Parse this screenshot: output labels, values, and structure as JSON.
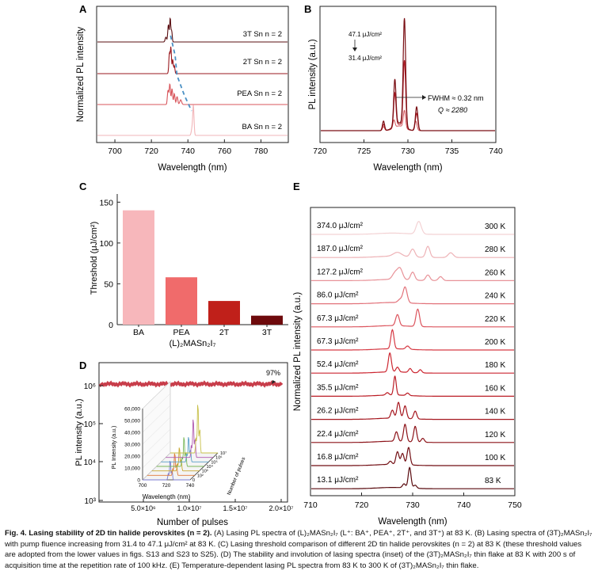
{
  "colors": {
    "axis": "#222222",
    "t3": "#5a0f12",
    "t2": "#9a1a1f",
    "pea": "#d8555b",
    "ba": "#f2b6b9",
    "dashed_blue": "#4a90c4",
    "d_trace": "#c83d4a",
    "bars": [
      "#f7b7bb",
      "#f06b6b",
      "#c0201a",
      "#6e0a0c"
    ]
  },
  "panelA": {
    "letter": "A",
    "ylabel": "Normalized PL intensity",
    "xlabel": "Wavelength (nm)",
    "xticks": [
      "700",
      "720",
      "740",
      "760",
      "780"
    ],
    "traces": [
      "3T Sn n = 2",
      "2T Sn n = 2",
      "PEA Sn n = 2",
      "BA Sn n = 2"
    ]
  },
  "panelB": {
    "letter": "B",
    "ylabel": "PL intensity (a.u.)",
    "xlabel": "Wavelength (nm)",
    "xticks": [
      "720",
      "725",
      "730",
      "735",
      "740"
    ],
    "fluence_top": "47.1 μJ/cm²",
    "fluence_bottom": "31.4 μJ/cm²",
    "fwhm": "FWHM ≈ 0.32 nm",
    "q": "Q ≈ 2280"
  },
  "panelC": {
    "letter": "C",
    "ylabel": "Threshold (μJ/cm²)",
    "xlabel": "(L)₂MASn₂I₇",
    "yticks": [
      "0",
      "50",
      "100",
      "150"
    ]
  },
  "chart_data": [
    {
      "type": "bar",
      "categories": [
        "BA",
        "PEA",
        "2T",
        "3T"
      ],
      "values": [
        140,
        58,
        29,
        11
      ],
      "ylabel": "Threshold (μJ/cm²)",
      "xlabel": "(L)₂MASn₂I₇",
      "ylim": [
        0,
        160
      ]
    }
  ],
  "panelD": {
    "letter": "D",
    "ylabel": "PL intensity (a.u.)",
    "xlabel": "Number of pulses",
    "yticks": [
      "10³",
      "10⁴",
      "10⁵",
      "10⁶"
    ],
    "xticks": [
      "5.0×10⁶",
      "1.0×10⁷",
      "1.5×10⁷",
      "2.0×10⁷"
    ],
    "annotation": "97%",
    "inset": {
      "ylabel": "PL Intensity (a.u.)",
      "xlabel": "Wavelength (nm)",
      "zlabel": "Number of pulses",
      "yticks": [
        "0",
        "10,000",
        "20,000",
        "30,000",
        "40,000",
        "50,000",
        "60,000"
      ],
      "xticks": [
        "700",
        "720",
        "740"
      ],
      "zticks": [
        "0",
        "10²",
        "10³",
        "10⁴",
        "10⁵",
        "10⁶",
        "10⁷"
      ]
    }
  },
  "panelE": {
    "letter": "E",
    "ylabel": "Normalized PL intensity (a.u.)",
    "xlabel": "Wavelength (nm)",
    "xticks": [
      "710",
      "720",
      "730",
      "740",
      "750"
    ],
    "rows": [
      {
        "fluence": "374.0 μJ/cm²",
        "temp": "300 K",
        "color": "#f3d2d4"
      },
      {
        "fluence": "187.0 μJ/cm²",
        "temp": "280 K",
        "color": "#eeb2b6"
      },
      {
        "fluence": "127.2 μJ/cm²",
        "temp": "260 K",
        "color": "#e89298"
      },
      {
        "fluence": "86.0 μJ/cm²",
        "temp": "240 K",
        "color": "#e2727a"
      },
      {
        "fluence": "67.3 μJ/cm²",
        "temp": "220 K",
        "color": "#dc555e"
      },
      {
        "fluence": "67.3 μJ/cm²",
        "temp": "200 K",
        "color": "#d63a44"
      },
      {
        "fluence": "52.4 μJ/cm²",
        "temp": "180 K",
        "color": "#cc2630"
      },
      {
        "fluence": "35.5 μJ/cm²",
        "temp": "160 K",
        "color": "#bb1c25"
      },
      {
        "fluence": "26.2 μJ/cm²",
        "temp": "140 K",
        "color": "#a5161e"
      },
      {
        "fluence": "22.4 μJ/cm²",
        "temp": "120 K",
        "color": "#8c1218"
      },
      {
        "fluence": "16.8 μJ/cm²",
        "temp": "100 K",
        "color": "#720e13"
      },
      {
        "fluence": "13.1 μJ/cm²",
        "temp": "83 K",
        "color": "#590a0e"
      }
    ]
  },
  "caption": {
    "title": "Fig. 4. Lasing stability of 2D tin halide perovskites (n = 2).",
    "body": " (A) Lasing PL spectra of (L)₂MASn₂I₇ (L⁺: BA⁺, PEA⁺, 2T⁺, and 3T⁺) at 83 K. (B) Lasing spectra of (3T)₂MASn₂I₇ with pump fluence increasing from 31.4 to 47.1 μJ/cm² at 83 K. (C) Lasing threshold comparison of different 2D tin halide perovskites (n = 2) at 83 K (these threshold values are adopted from the lower values in figs. S13 and S23 to S25). (D) The stability and involution of lasing spectra (inset) of the (3T)₂MASn₂I₇ thin flake at 83 K with 200 s of acquisition time at the repetition rate of 100 kHz. (E) Temperature-dependent lasing PL spectra from 83 K to 300 K of (3T)₂MASn₂I₇ thin flake."
  }
}
